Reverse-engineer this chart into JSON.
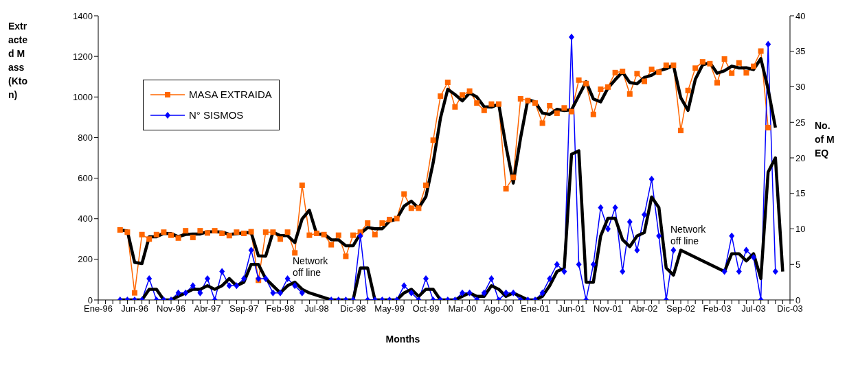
{
  "chart_data": {
    "type": "line",
    "xlabel": "Months",
    "ylabel": "Extracted Mass (Kton)",
    "y2label": "No. of MEQ",
    "categories": [
      "Ene-96",
      null,
      null,
      null,
      null,
      "Jun-96",
      null,
      null,
      null,
      null,
      "Nov-96",
      null,
      null,
      null,
      null,
      "Abr-97",
      null,
      null,
      null,
      null,
      "Sep-97",
      null,
      null,
      null,
      null,
      "Feb-98",
      null,
      null,
      null,
      null,
      "Jul-98",
      null,
      null,
      null,
      null,
      "Dic-98",
      null,
      null,
      null,
      null,
      "May-99",
      null,
      null,
      null,
      null,
      "Oct-99",
      null,
      null,
      null,
      null,
      "Mar-00",
      null,
      null,
      null,
      null,
      "Ago-00",
      null,
      null,
      null,
      null,
      "Ene-01",
      null,
      null,
      null,
      null,
      "Jun-01",
      null,
      null,
      null,
      null,
      "Nov-01",
      null,
      null,
      null,
      null,
      "Abr-02",
      null,
      null,
      null,
      null,
      "Sep-02",
      null,
      null,
      null,
      null,
      "Feb-03",
      null,
      null,
      null,
      null,
      "Jul-03",
      null,
      null,
      null,
      null,
      "Dic-03"
    ],
    "series": [
      {
        "name": "MASA EXTRAIDA",
        "color": "#ff6600",
        "marker": "square",
        "values": [
          null,
          null,
          null,
          345,
          334,
          35,
          322,
          300,
          322,
          334,
          319,
          305,
          341,
          308,
          341,
          330,
          341,
          328,
          317,
          334,
          328,
          336,
          97,
          334,
          334,
          300,
          334,
          232,
          565,
          319,
          328,
          322,
          272,
          319,
          215,
          319,
          334,
          379,
          322,
          379,
          396,
          401,
          522,
          452,
          452,
          565,
          787,
          1004,
          1072,
          951,
          1010,
          1029,
          970,
          934,
          965,
          965,
          548,
          604,
          991,
          982,
          970,
          871,
          957,
          920,
          946,
          928,
          1083,
          1066,
          914,
          1038,
          1049,
          1120,
          1126,
          1015,
          1115,
          1077,
          1136,
          1122,
          1156,
          1156,
          835,
          1032,
          1142,
          1173,
          1164,
          1070,
          1187,
          1117,
          1168,
          1119,
          1151,
          1226,
          849,
          null,
          null,
          null
        ]
      },
      {
        "name": "N° SISMOS",
        "color": "#0000ff",
        "marker": "diamond",
        "axis": "y2",
        "values": [
          null,
          null,
          null,
          0,
          0,
          0,
          0,
          3,
          0,
          0,
          0,
          1,
          1,
          2,
          1,
          3,
          0,
          4,
          2,
          2,
          3,
          7,
          3,
          3,
          1,
          1,
          3,
          2,
          1,
          null,
          null,
          null,
          0,
          0,
          0,
          0,
          9,
          0,
          0,
          0,
          0,
          0,
          2,
          1,
          0,
          3,
          0,
          0,
          0,
          0,
          1,
          1,
          0,
          1,
          3,
          0,
          1,
          1,
          0,
          0,
          0,
          1,
          3,
          5,
          4,
          37,
          5,
          0,
          5,
          13,
          10,
          13,
          4,
          11,
          7,
          12,
          17,
          9,
          0,
          7,
          null,
          null,
          null,
          null,
          null,
          null,
          4,
          9,
          4,
          7,
          6,
          0,
          36,
          4,
          null,
          null
        ]
      },
      {
        "color": "#000000",
        "marker": "none",
        "values": [
          null,
          null,
          null,
          345,
          340,
          185,
          179,
          311,
          311,
          328,
          327,
          312,
          323,
          325,
          325,
          336,
          336,
          335,
          323,
          326,
          331,
          332,
          217,
          216,
          334,
          317,
          317,
          283,
          399,
          442,
          324,
          325,
          297,
          296,
          267,
          267,
          327,
          357,
          351,
          351,
          388,
          399,
          462,
          487,
          452,
          509,
          676,
          896,
          1038,
          1012,
          981,
          1020,
          1000,
          952,
          950,
          965,
          757,
          576,
          798,
          987,
          976,
          921,
          914,
          939,
          933,
          937,
          1006,
          1075,
          990,
          976,
          1044,
          1085,
          1123,
          1071,
          1065,
          1096,
          1107,
          1129,
          1139,
          1156,
          996,
          934,
          1087,
          1158,
          1169,
          1117,
          1129,
          1152,
          1143,
          1144,
          1135,
          1189,
          1038,
          849,
          null,
          null
        ]
      },
      {
        "color": "#000000",
        "marker": "none",
        "axis": "y2",
        "values": [
          null,
          null,
          null,
          0,
          0,
          0,
          0,
          1.5,
          1.5,
          0,
          0,
          0.5,
          1,
          1.5,
          1.5,
          2,
          1.5,
          2,
          3,
          2,
          2.5,
          5,
          5,
          3,
          2,
          1,
          2,
          2.5,
          1.5,
          1,
          null,
          null,
          0,
          0,
          0,
          0,
          4.5,
          4.5,
          0,
          0,
          0,
          0,
          1,
          1.5,
          0.5,
          1.5,
          1.5,
          0,
          0,
          0,
          0.5,
          1,
          0.5,
          0.5,
          2,
          1.5,
          0.5,
          1,
          0.5,
          0,
          0,
          0.5,
          2,
          4,
          4.5,
          20.5,
          21,
          2.5,
          2.5,
          9,
          11.5,
          11.5,
          8.5,
          7.5,
          9,
          9.5,
          14.5,
          13,
          4.5,
          3.5,
          7,
          null,
          null,
          null,
          null,
          null,
          4,
          6.5,
          6.5,
          5.5,
          6.5,
          3,
          18,
          20,
          4,
          null
        ]
      }
    ],
    "ylim": [
      0,
      1400
    ],
    "yticks": [
      0,
      200,
      400,
      600,
      800,
      1000,
      1200,
      1400
    ],
    "y2lim": [
      0,
      40
    ],
    "y2ticks": [
      0,
      5,
      10,
      15,
      20,
      25,
      30,
      35,
      40
    ],
    "annotations": [
      "Network off line",
      "Network off line"
    ],
    "legend": "top left",
    "grid": false
  }
}
